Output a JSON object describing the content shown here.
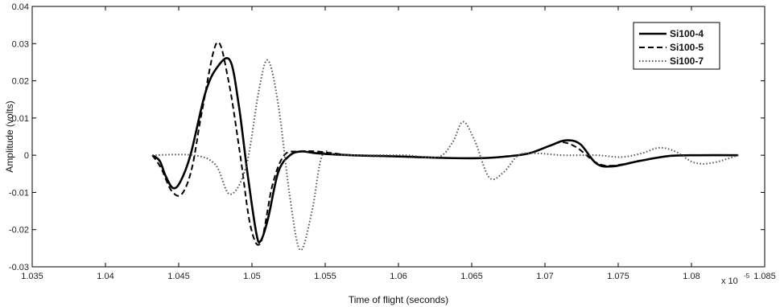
{
  "chart_data": {
    "type": "line",
    "title": "",
    "xlabel": "Time of flight (seconds)",
    "ylabel": "Amplitude (volts)",
    "x_exponent_label": "x 10",
    "x_exponent_power": "-5",
    "xlim": [
      1.035,
      1.085
    ],
    "ylim": [
      -0.03,
      0.04
    ],
    "x_ticks": [
      "1.035",
      "1.04",
      "1.045",
      "1.05",
      "1.055",
      "1.06",
      "1.065",
      "1.07",
      "1.075",
      "1.08",
      "1.085"
    ],
    "y_ticks": [
      "-0.03",
      "-0.02",
      "-0.01",
      "0",
      "0.01",
      "0.02",
      "0.03",
      "0.04"
    ],
    "grid": false,
    "legend_position": "top-right",
    "series": [
      {
        "name": "Si100-4",
        "style": "solid",
        "color": "#000000",
        "x": [
          1.0432,
          1.0437,
          1.0441,
          1.0446,
          1.0451,
          1.0458,
          1.0468,
          1.0476,
          1.0485,
          1.0491,
          1.0497,
          1.0503,
          1.0506,
          1.0511,
          1.0518,
          1.0526,
          1.0534,
          1.0545,
          1.0568,
          1.0598,
          1.0628,
          1.0655,
          1.0672,
          1.0689,
          1.0703,
          1.0714,
          1.0724,
          1.0735,
          1.0746,
          1.0765,
          1.0785,
          1.0805,
          1.0832
        ],
        "y": [
          0.0,
          -0.0015,
          -0.0055,
          -0.0088,
          -0.0072,
          0.0,
          0.0165,
          0.0235,
          0.0255,
          0.0135,
          -0.005,
          -0.021,
          -0.023,
          -0.017,
          -0.0045,
          0.0,
          0.001,
          0.0005,
          0.0,
          -0.0003,
          -0.0007,
          -0.0008,
          -0.0004,
          0.0005,
          0.0025,
          0.004,
          0.003,
          -0.0022,
          -0.003,
          -0.0015,
          -0.0002,
          0.0,
          0.0
        ]
      },
      {
        "name": "Si100-5",
        "style": "dashed",
        "color": "#000000",
        "x": [
          1.0432,
          1.0438,
          1.0445,
          1.0452,
          1.0459,
          1.0466,
          1.0476,
          1.0484,
          1.0492,
          1.0499,
          1.0506,
          1.0514,
          1.0522,
          1.0532,
          1.0545,
          1.0568,
          1.0598,
          1.0628,
          1.0655,
          1.0672,
          1.0689,
          1.0703,
          1.0712,
          1.0722,
          1.0735,
          1.0746,
          1.0765,
          1.0785,
          1.0805,
          1.0832
        ],
        "y": [
          0.0,
          -0.0035,
          -0.0095,
          -0.0105,
          -0.0035,
          0.012,
          0.0302,
          0.02,
          0.0,
          -0.019,
          -0.0235,
          -0.008,
          0.0,
          0.001,
          0.001,
          0.0,
          -0.0003,
          -0.0007,
          -0.0008,
          -0.0004,
          0.0005,
          0.0025,
          0.0035,
          0.002,
          -0.002,
          -0.0028,
          -0.0015,
          -0.0002,
          0.0,
          0.0
        ]
      },
      {
        "name": "Si100-7",
        "style": "dotted",
        "color": "#555555",
        "x": [
          1.0432,
          1.046,
          1.0475,
          1.0485,
          1.0496,
          1.0505,
          1.0511,
          1.0518,
          1.0526,
          1.0533,
          1.0541,
          1.0548,
          1.0558,
          1.0578,
          1.0605,
          1.0627,
          1.0637,
          1.0644,
          1.0652,
          1.0662,
          1.0672,
          1.0682,
          1.0695,
          1.0712,
          1.0735,
          1.0752,
          1.0766,
          1.0778,
          1.0789,
          1.0802,
          1.0815,
          1.0832
        ],
        "y": [
          0.0,
          0.0,
          -0.0025,
          -0.0105,
          -0.003,
          0.018,
          0.0255,
          0.0135,
          -0.0115,
          -0.0255,
          -0.015,
          0.0,
          0.0,
          0.0,
          0.0,
          -0.0005,
          0.0035,
          0.009,
          0.004,
          -0.006,
          -0.0045,
          0.0,
          0.0005,
          0.0,
          0.0,
          -0.0005,
          0.0005,
          0.002,
          0.001,
          -0.002,
          -0.002,
          0.0
        ]
      }
    ]
  }
}
